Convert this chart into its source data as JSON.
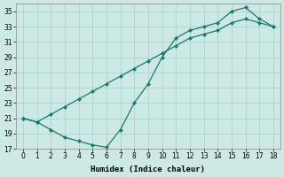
{
  "xlabel": "Humidex (Indice chaleur)",
  "line_color": "#1a7a6e",
  "bg_color": "#cce9e5",
  "grid_color": "#aacfcc",
  "ylim": [
    17,
    36
  ],
  "xlim": [
    -0.5,
    18.5
  ],
  "yticks": [
    17,
    19,
    21,
    23,
    25,
    27,
    29,
    31,
    33,
    35
  ],
  "xticks": [
    0,
    1,
    2,
    3,
    4,
    5,
    6,
    7,
    8,
    9,
    10,
    11,
    12,
    13,
    14,
    15,
    16,
    17,
    18
  ],
  "curve_upper_x": [
    0,
    1,
    2,
    3,
    4,
    5,
    6,
    7,
    8,
    9,
    10,
    11,
    12,
    13,
    14,
    15,
    16,
    17,
    18
  ],
  "curve_upper_y": [
    21.0,
    20.5,
    19.5,
    18.5,
    18.0,
    17.5,
    17.2,
    19.5,
    23.0,
    25.5,
    29.0,
    31.5,
    32.5,
    33.0,
    33.5,
    35.0,
    35.5,
    34.0,
    33.0
  ],
  "curve_lower_x": [
    0,
    1,
    2,
    3,
    4,
    5,
    6,
    7,
    8,
    9,
    10,
    11,
    12,
    13,
    14,
    15,
    16,
    17,
    18
  ],
  "curve_lower_y": [
    21.0,
    20.5,
    21.5,
    22.5,
    23.5,
    24.5,
    25.5,
    26.5,
    27.5,
    28.5,
    29.5,
    30.5,
    31.5,
    32.0,
    32.5,
    33.5,
    34.0,
    33.5,
    33.0
  ]
}
